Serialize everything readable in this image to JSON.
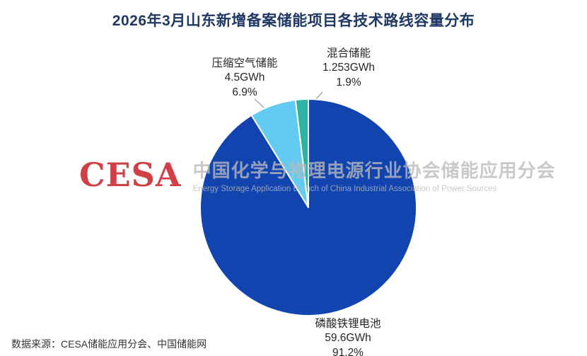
{
  "title": "2026年3月山东新增备案储能项目各技术路线容量分布",
  "chart_data": {
    "type": "pie",
    "title": "2026年3月山东新增备案储能项目各技术路线容量分布",
    "unit": "GWh",
    "start_angle_deg": 0,
    "direction": "clockwise",
    "legend": "none",
    "slice_border_color": "#ffffff",
    "background": "#ffffff",
    "series": [
      {
        "name": "磷酸铁锂电池",
        "value_gwh": 59.6,
        "percent": 91.2,
        "label_value": "59.6GWh",
        "label_percent": "91.2%",
        "color": "#1244b0"
      },
      {
        "name": "压缩空气储能",
        "value_gwh": 4.5,
        "percent": 6.9,
        "label_value": "4.5GWh",
        "label_percent": "6.9%",
        "color": "#63cbf1"
      },
      {
        "name": "混合储能",
        "value_gwh": 1.253,
        "percent": 1.9,
        "label_value": "1.253GWh",
        "label_percent": "1.9%",
        "color": "#2db3a4"
      }
    ]
  },
  "watermark": {
    "logo": "CESA",
    "line_cn": "中国化学与物理电源行业协会储能应用分会",
    "line_en": "Energy Storage Application Branch of China Industrial Association of Power Sources"
  },
  "footer": {
    "source": "数据来源：CESA储能应用分会、中国储能网"
  }
}
